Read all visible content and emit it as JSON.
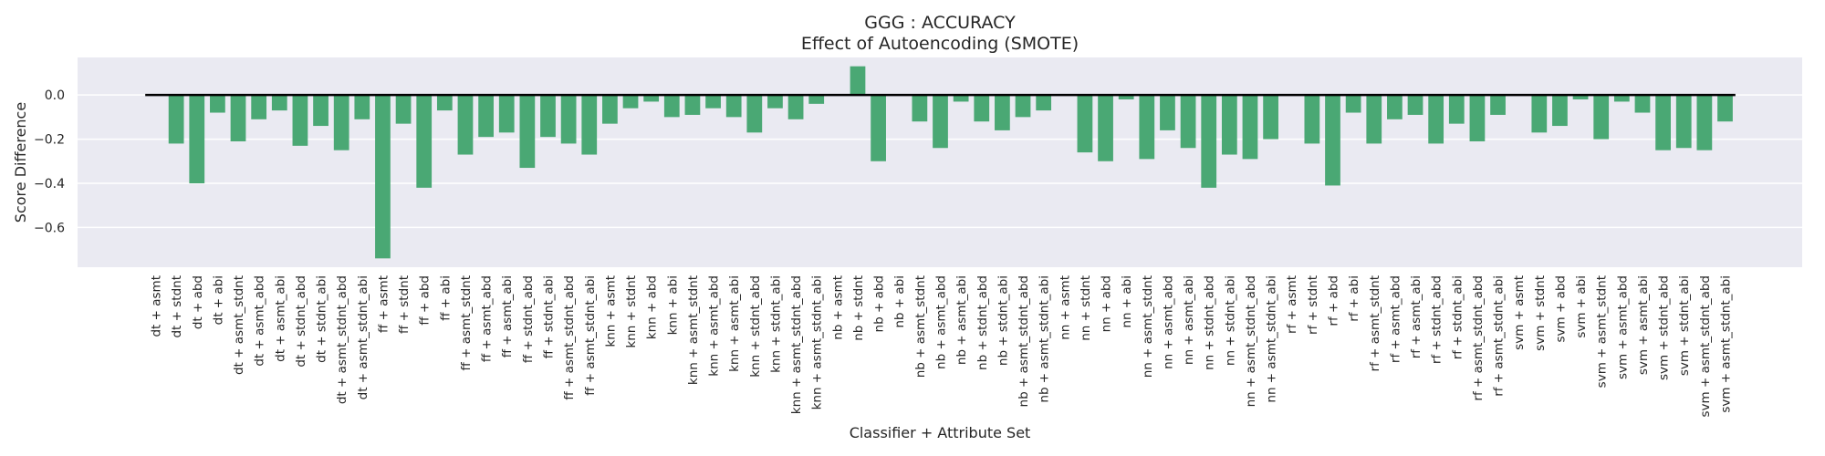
{
  "chart_data": {
    "type": "bar",
    "title": "GGG : ACCURACY",
    "subtitle": "Effect of Autoencoding (SMOTE)",
    "xlabel": "Classifier + Attribute Set",
    "ylabel": "Score Difference",
    "ylim": [
      -0.78,
      0.17
    ],
    "yticks": [
      0.0,
      -0.2,
      -0.4,
      -0.6
    ],
    "ytick_labels": [
      "0.0",
      "−0.2",
      "−0.4",
      "−0.6"
    ],
    "grid": true,
    "bar_color": "#4aa874",
    "background_color": "#eaeaf2",
    "baseline_color": "#000000",
    "categories": [
      "dt + asmt",
      "dt + stdnt",
      "dt + abd",
      "dt + abi",
      "dt + asmt_stdnt",
      "dt + asmt_abd",
      "dt + asmt_abi",
      "dt + stdnt_abd",
      "dt + stdnt_abi",
      "dt + asmt_stdnt_abd",
      "dt + asmt_stdnt_abi",
      "ff + asmt",
      "ff + stdnt",
      "ff + abd",
      "ff + abi",
      "ff + asmt_stdnt",
      "ff + asmt_abd",
      "ff + asmt_abi",
      "ff + stdnt_abd",
      "ff + stdnt_abi",
      "ff + asmt_stdnt_abd",
      "ff + asmt_stdnt_abi",
      "knn + asmt",
      "knn + stdnt",
      "knn + abd",
      "knn + abi",
      "knn + asmt_stdnt",
      "knn + asmt_abd",
      "knn + asmt_abi",
      "knn + stdnt_abd",
      "knn + stdnt_abi",
      "knn + asmt_stdnt_abd",
      "knn + asmt_stdnt_abi",
      "nb + asmt",
      "nb + stdnt",
      "nb + abd",
      "nb + abi",
      "nb + asmt_stdnt",
      "nb + asmt_abd",
      "nb + asmt_abi",
      "nb + stdnt_abd",
      "nb + stdnt_abi",
      "nb + asmt_stdnt_abd",
      "nb + asmt_stdnt_abi",
      "nn + asmt",
      "nn + stdnt",
      "nn + abd",
      "nn + abi",
      "nn + asmt_stdnt",
      "nn + asmt_abd",
      "nn + asmt_abi",
      "nn + stdnt_abd",
      "nn + stdnt_abi",
      "nn + asmt_stdnt_abd",
      "nn + asmt_stdnt_abi",
      "rf + asmt",
      "rf + stdnt",
      "rf + abd",
      "rf + abi",
      "rf + asmt_stdnt",
      "rf + asmt_abd",
      "rf + asmt_abi",
      "rf + stdnt_abd",
      "rf + stdnt_abi",
      "rf + asmt_stdnt_abd",
      "rf + asmt_stdnt_abi",
      "svm + asmt",
      "svm + stdnt",
      "svm + abd",
      "svm + abi",
      "svm + asmt_stdnt",
      "svm + asmt_abd",
      "svm + asmt_abi",
      "svm + stdnt_abd",
      "svm + stdnt_abi",
      "svm + asmt_stdnt_abd",
      "svm + asmt_stdnt_abi"
    ],
    "values": [
      0.0,
      -0.22,
      -0.4,
      -0.08,
      -0.21,
      -0.11,
      -0.07,
      -0.23,
      -0.14,
      -0.25,
      -0.11,
      -0.74,
      -0.13,
      -0.42,
      -0.07,
      -0.27,
      -0.19,
      -0.17,
      -0.33,
      -0.19,
      -0.22,
      -0.27,
      -0.13,
      -0.06,
      -0.03,
      -0.1,
      -0.09,
      -0.06,
      -0.1,
      -0.17,
      -0.06,
      -0.11,
      -0.04,
      0.0,
      0.13,
      -0.3,
      0.0,
      -0.12,
      -0.24,
      -0.03,
      -0.12,
      -0.16,
      -0.1,
      -0.07,
      0.0,
      -0.26,
      -0.3,
      -0.02,
      -0.29,
      -0.16,
      -0.24,
      -0.42,
      -0.27,
      -0.29,
      -0.2,
      0.0,
      -0.22,
      -0.41,
      -0.08,
      -0.22,
      -0.11,
      -0.09,
      -0.22,
      -0.13,
      -0.21,
      -0.09,
      0.0,
      -0.17,
      -0.14,
      -0.02,
      -0.2,
      -0.03,
      -0.08,
      -0.25,
      -0.24,
      -0.25,
      -0.12
    ]
  }
}
